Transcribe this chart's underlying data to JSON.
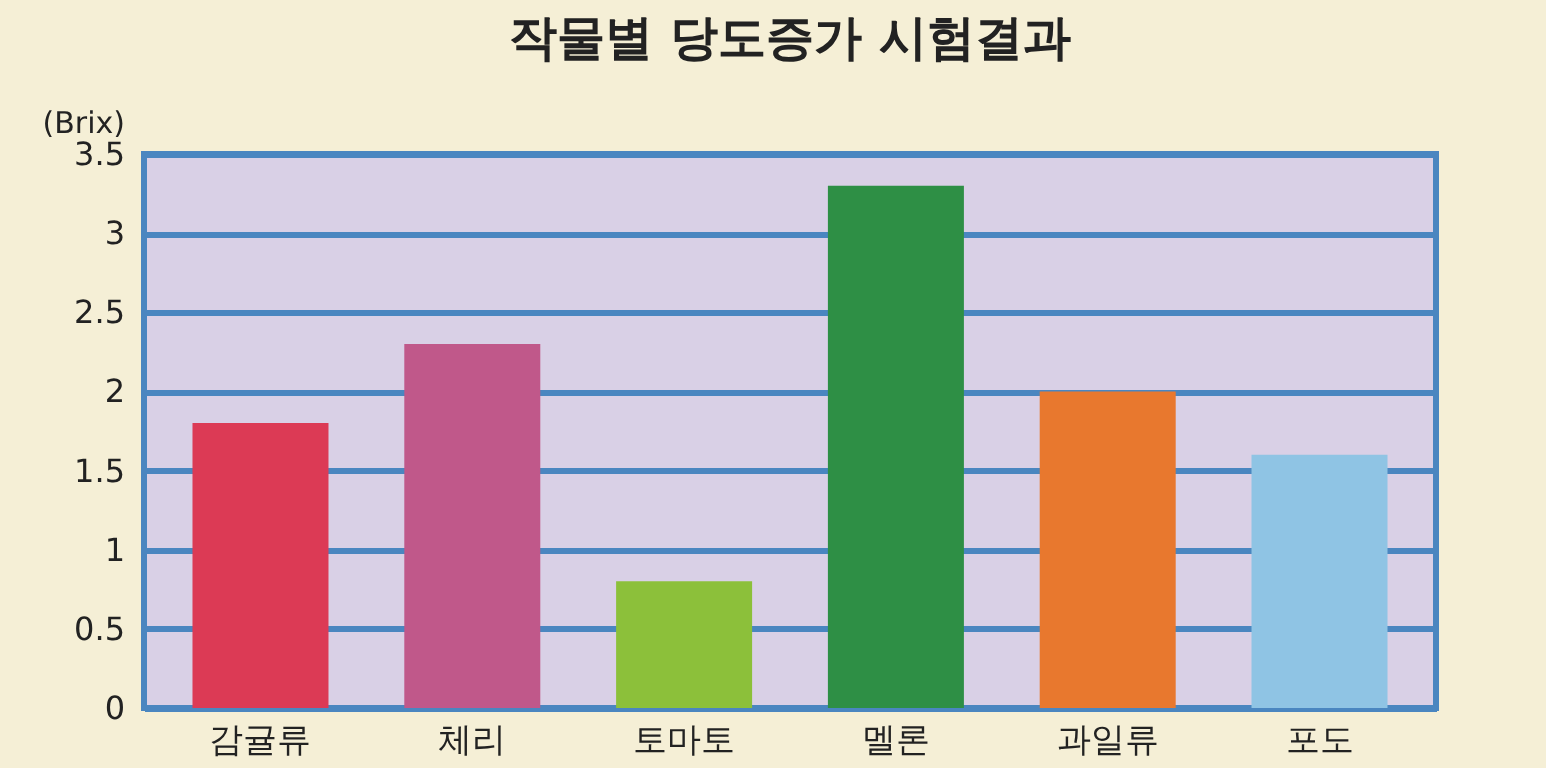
{
  "chart_data": {
    "type": "bar",
    "title": "작물별 당도증가 시험결과",
    "ylabel": "(Brix)",
    "categories": [
      "감귤류",
      "체리",
      "토마토",
      "멜론",
      "과일류",
      "포도"
    ],
    "values": [
      1.8,
      2.3,
      0.8,
      3.3,
      2.0,
      1.6
    ],
    "colors": [
      "#dc3a55",
      "#c0588a",
      "#8cc03a",
      "#2e8f45",
      "#e8782e",
      "#8fc4e4"
    ],
    "ylim": [
      0,
      3.5
    ],
    "yticks": [
      0,
      0.5,
      1,
      1.5,
      2,
      2.5,
      3,
      3.5
    ],
    "grid": "y"
  }
}
